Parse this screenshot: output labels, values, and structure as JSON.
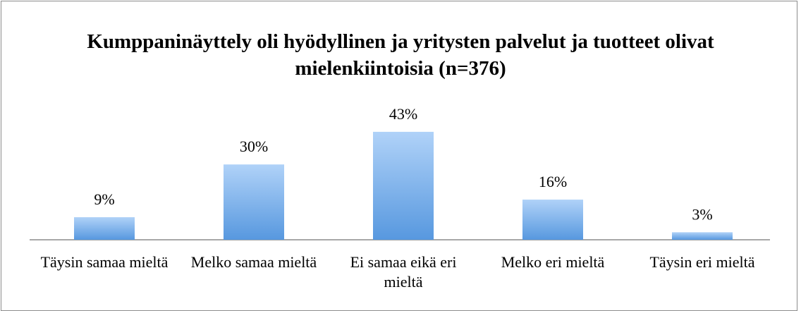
{
  "chart_data": {
    "type": "bar",
    "title": "Kumppaninäyttely oli hyödyllinen ja yritysten palvelut ja tuotteet olivat mielenkiintoisia (n=376)",
    "categories": [
      "Täysin samaa mieltä",
      "Melko samaa mieltä",
      "Ei samaa eikä eri mieltä",
      "Melko eri mieltä",
      "Täysin eri mieltä"
    ],
    "values": [
      9,
      30,
      43,
      16,
      3
    ],
    "value_labels": [
      "9%",
      "30%",
      "43%",
      "16%",
      "3%"
    ],
    "color": "#7fb3ee"
  }
}
